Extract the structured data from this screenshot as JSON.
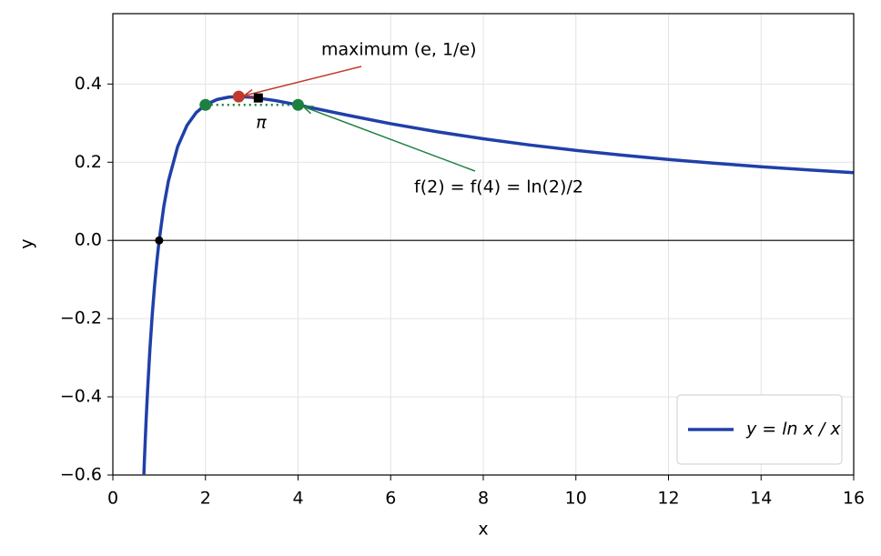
{
  "chart_data": {
    "type": "line",
    "xlabel": "x",
    "ylabel": "y",
    "xlim": [
      0,
      16
    ],
    "ylim": [
      -0.6,
      0.58
    ],
    "xticks": [
      0,
      2,
      4,
      6,
      8,
      10,
      12,
      14,
      16
    ],
    "yticks": [
      {
        "value": -0.6,
        "label": "−0.6"
      },
      {
        "value": -0.4,
        "label": "−0.4"
      },
      {
        "value": -0.2,
        "label": "−0.2"
      },
      {
        "value": 0,
        "label": "0.0"
      },
      0.2,
      0.4
    ],
    "grid": true,
    "legend_position": "lower right",
    "series": [
      {
        "name": "y = ln x / x",
        "color": "#2040a8",
        "x": [
          0.67,
          0.68,
          0.7,
          0.72,
          0.75,
          0.8,
          0.85,
          0.9,
          0.95,
          1,
          1.1,
          1.2,
          1.4,
          1.6,
          1.8,
          2,
          2.25,
          2.5,
          2.718,
          3,
          3.5,
          4,
          5,
          6,
          7,
          8,
          9,
          10,
          11,
          12,
          13,
          14,
          15,
          16
        ],
        "values": [
          -0.598,
          -0.567,
          -0.51,
          -0.456,
          -0.384,
          -0.279,
          -0.191,
          -0.117,
          -0.054,
          0,
          0.0866,
          0.152,
          0.24,
          0.294,
          0.327,
          0.3466,
          0.3604,
          0.3665,
          0.3679,
          0.3662,
          0.3579,
          0.3466,
          0.3219,
          0.2986,
          0.278,
          0.2599,
          0.2441,
          0.2303,
          0.218,
          0.2071,
          0.1973,
          0.1885,
          0.1805,
          0.1733
        ]
      }
    ],
    "markers": [
      {
        "x": 1,
        "y": 0,
        "color": "#000000",
        "shape": "circle"
      },
      {
        "x": 2,
        "y": 0.3466,
        "color": "#1e8040",
        "shape": "circle"
      },
      {
        "x": 4,
        "y": 0.3466,
        "color": "#1e8040",
        "shape": "circle"
      },
      {
        "x": 2.718,
        "y": 0.3679,
        "color": "#c0392b",
        "shape": "circle"
      },
      {
        "x": 3.1416,
        "y": 0.3644,
        "color": "#000000",
        "shape": "square"
      }
    ],
    "annotations": [
      "maximum (e, 1/e)",
      "π",
      "f(2) = f(4) = ln(2)/2"
    ]
  }
}
